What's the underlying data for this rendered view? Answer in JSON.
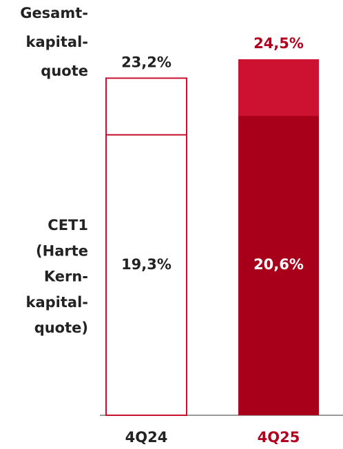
{
  "chart_data": {
    "type": "overlap_bar",
    "categories": [
      "4Q24",
      "4Q25"
    ],
    "category_colors": [
      "#222222",
      "#b0001e"
    ],
    "series": [
      {
        "name": "Gesamt-\nkapital-\nquote",
        "values": [
          23.2,
          24.5
        ],
        "value_labels": [
          "23,2%",
          "24,5%"
        ],
        "colors": [
          "#ffffff",
          "#cc1230"
        ],
        "label_colors": [
          "#222222",
          "#b0001e"
        ],
        "label_position": "above"
      },
      {
        "name": "CET1\n(Harte\nKern-\nkapital-\nquote)",
        "values": [
          19.3,
          20.6
        ],
        "value_labels": [
          "19,3%",
          "20,6%"
        ],
        "colors": [
          "#ffffff",
          "#a8001b"
        ],
        "label_colors": [
          "#222222",
          "#ffffff"
        ],
        "label_position": "inside"
      }
    ],
    "outline_colors": [
      "#c8102e",
      null
    ]
  }
}
